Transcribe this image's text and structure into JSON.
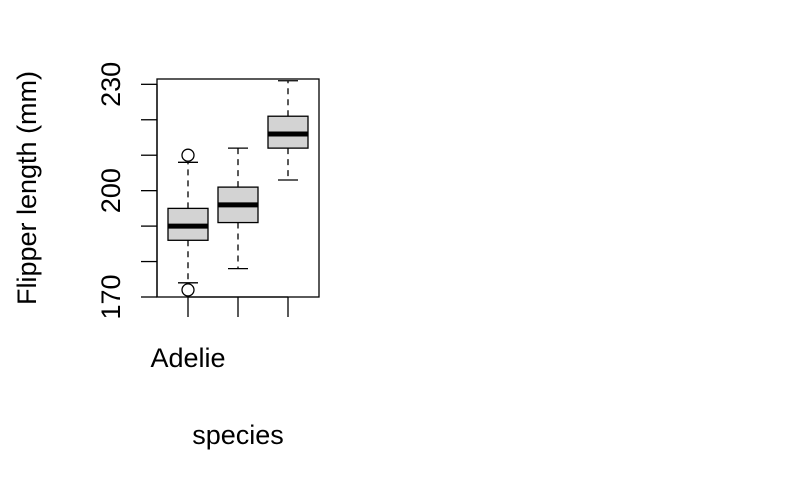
{
  "chart_data": {
    "type": "boxplot",
    "title": "",
    "xlabel": "species",
    "ylabel": "Flipper length (mm)",
    "ylim": [
      170,
      231.5
    ],
    "yticks": [
      170,
      180,
      190,
      200,
      210,
      220,
      230
    ],
    "ytick_labels": [
      "170",
      "",
      "",
      "200",
      "",
      "",
      "230"
    ],
    "categories": [
      "Adelie",
      "",
      ""
    ],
    "box_fill": "#d3d3d3",
    "boxes": [
      {
        "whisker_low": 174,
        "q1": 186,
        "median": 190,
        "q3": 195,
        "whisker_high": 208,
        "outliers": [
          172,
          210
        ]
      },
      {
        "whisker_low": 178,
        "q1": 191,
        "median": 196,
        "q3": 201,
        "whisker_high": 212,
        "outliers": []
      },
      {
        "whisker_low": 203,
        "q1": 212,
        "median": 216,
        "q3": 221,
        "whisker_high": 231,
        "outliers": []
      }
    ]
  }
}
